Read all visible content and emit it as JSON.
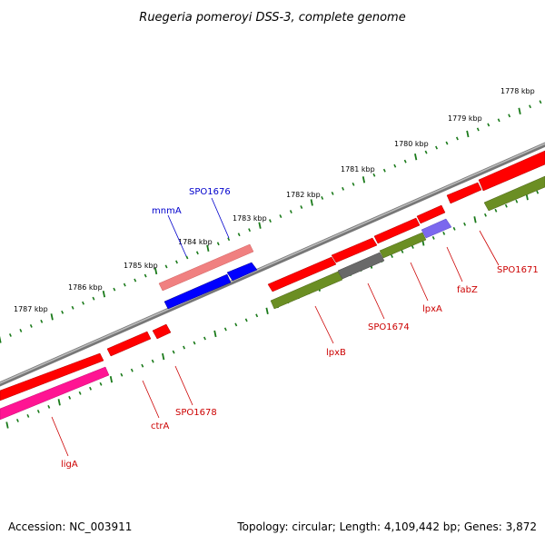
{
  "title": "Ruegeria pomeroyi DSS-3, complete genome",
  "accession_text": "Accession: NC_003911",
  "topology_text": "Topology: circular; Length: 4,109,442 bp; Genes: 3,872",
  "colors": {
    "backbone": "#808080",
    "ruler": "#1a7a1a",
    "red_gene": "#ff0000",
    "pink_gene": "#f08080",
    "blue_gene": "#0000ff",
    "green_gene": "#6b8e23",
    "magenta_gene": "#ff1493",
    "gray_gene": "#696969",
    "purple_gene": "#7b68ee",
    "red_label": "#cc0000",
    "blue_label": "#0000cc"
  },
  "kbp_labels": [
    {
      "text": "1778 kbp"
    },
    {
      "text": "1779 kbp"
    },
    {
      "text": "1780 kbp"
    },
    {
      "text": "1781 kbp"
    },
    {
      "text": "1782 kbp"
    },
    {
      "text": "1783 kbp"
    },
    {
      "text": "1784 kbp"
    },
    {
      "text": "1785 kbp"
    },
    {
      "text": "1786 kbp"
    },
    {
      "text": "1787 kbp"
    }
  ],
  "gene_labels": [
    {
      "text": "SPO1676",
      "color": "blue"
    },
    {
      "text": "mnmA",
      "color": "blue"
    },
    {
      "text": "SPO1671",
      "color": "red"
    },
    {
      "text": "fabZ",
      "color": "red"
    },
    {
      "text": "lpxA",
      "color": "red"
    },
    {
      "text": "SPO1674",
      "color": "red"
    },
    {
      "text": "lpxB",
      "color": "red"
    },
    {
      "text": "SPO1678",
      "color": "red"
    },
    {
      "text": "ctrA",
      "color": "red"
    },
    {
      "text": "ligA",
      "color": "red"
    }
  ]
}
